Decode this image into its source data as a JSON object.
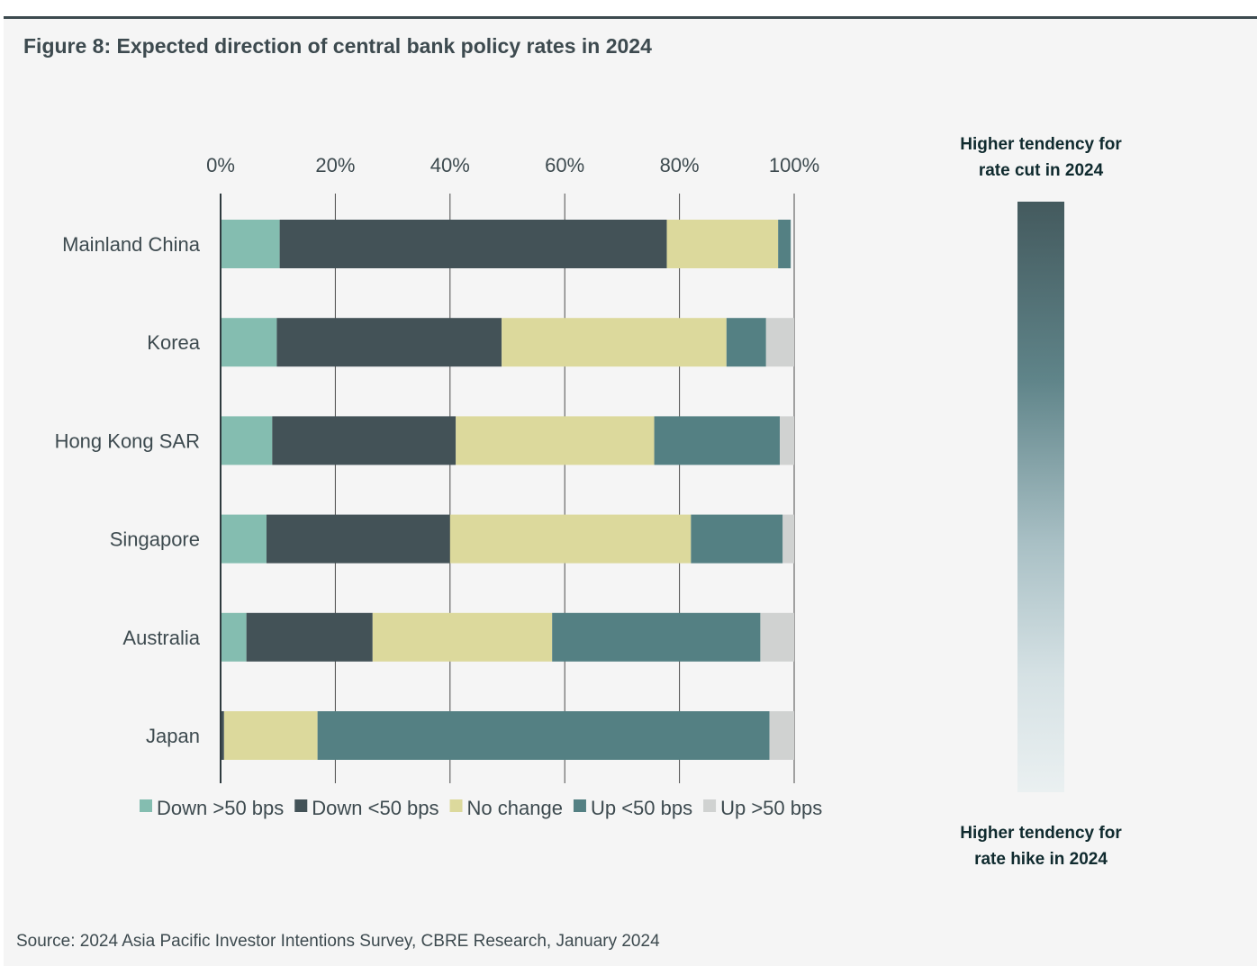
{
  "title": "Figure 8:  Expected direction of central bank policy rates in 2024",
  "source": "Source: 2024 Asia Pacific Investor Intentions Survey, CBRE Research, January 2024",
  "gradient_legend": {
    "top_line1": "Higher tendency for",
    "top_line2": "rate cut in 2024",
    "bottom_line1": "Higher tendency for",
    "bottom_line2": "rate hike in 2024"
  },
  "chart_data": {
    "type": "bar",
    "orientation": "horizontal",
    "stacked": true,
    "title": "Expected direction of central bank policy rates in 2024",
    "categories": [
      "Mainland China",
      "Korea",
      "Hong Kong SAR",
      "Singapore",
      "Australia",
      "Japan"
    ],
    "x_ticks": [
      "0%",
      "20%",
      "40%",
      "60%",
      "80%",
      "100%"
    ],
    "xlim": [
      0,
      100
    ],
    "grid": true,
    "legend_position": "bottom",
    "series": [
      {
        "name": "Down >50 bps",
        "color": "#84bdb0",
        "values": [
          10.3,
          9.8,
          9.0,
          8.0,
          4.5,
          0.0
        ]
      },
      {
        "name": "Down <50 bps",
        "color": "#435257",
        "values": [
          67.5,
          39.2,
          32.0,
          32.0,
          22.0,
          0.6
        ]
      },
      {
        "name": "No change",
        "color": "#dcd99c",
        "values": [
          19.4,
          39.2,
          34.6,
          42.0,
          31.3,
          16.3
        ]
      },
      {
        "name": "Up <50 bps",
        "color": "#548083",
        "values": [
          2.2,
          6.9,
          21.9,
          16.0,
          36.3,
          78.8
        ]
      },
      {
        "name": "Up >50 bps",
        "color": "#d0d2d1",
        "values": [
          0.0,
          4.9,
          2.5,
          2.0,
          5.9,
          4.3
        ]
      }
    ]
  }
}
